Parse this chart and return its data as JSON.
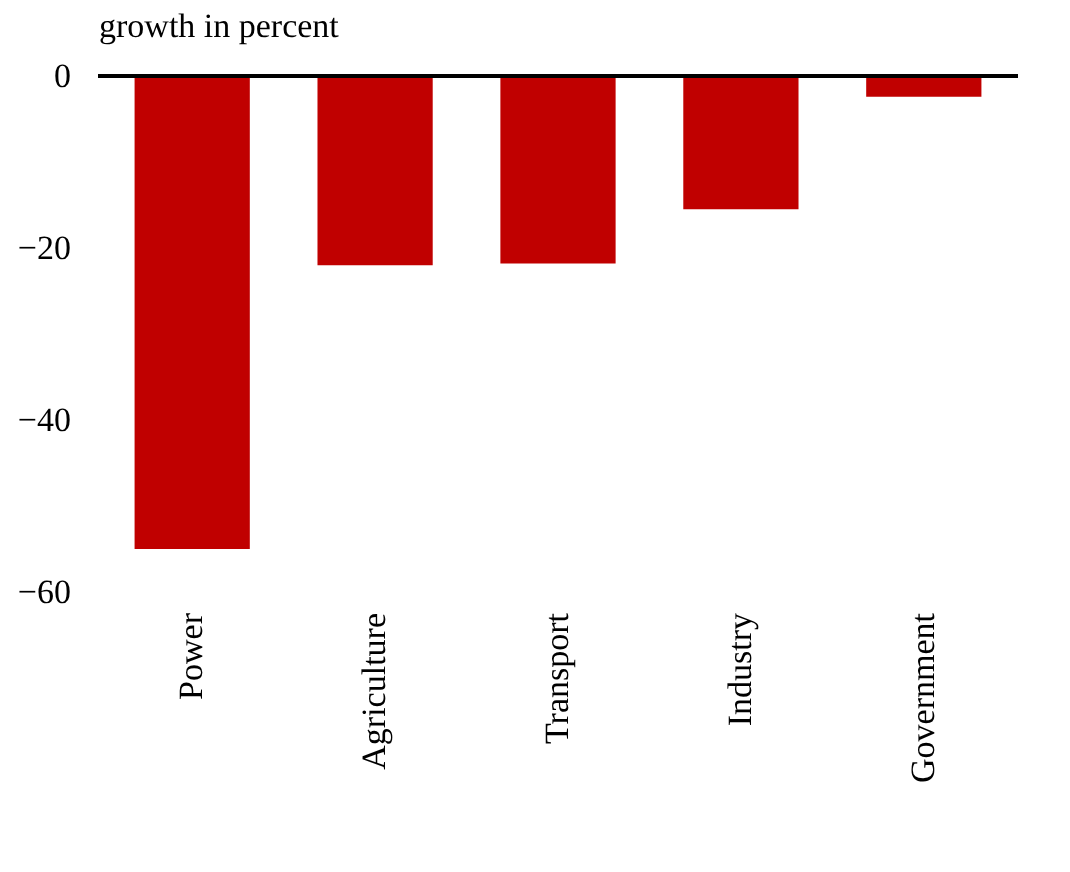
{
  "chart_data": {
    "type": "bar",
    "ylabel": "growth in percent",
    "categories": [
      "Power",
      "Agriculture",
      "Transport",
      "Industry",
      "Government"
    ],
    "values": [
      -55,
      -22,
      -21.8,
      -15.5,
      -2.4
    ],
    "color": "#c00000",
    "ylim": [
      -60,
      0
    ],
    "yticks": [
      -60,
      -40,
      -20,
      0
    ],
    "grid": false,
    "ref_lines": [
      {
        "axis": "y",
        "value": 0,
        "color": "#000000"
      }
    ]
  }
}
